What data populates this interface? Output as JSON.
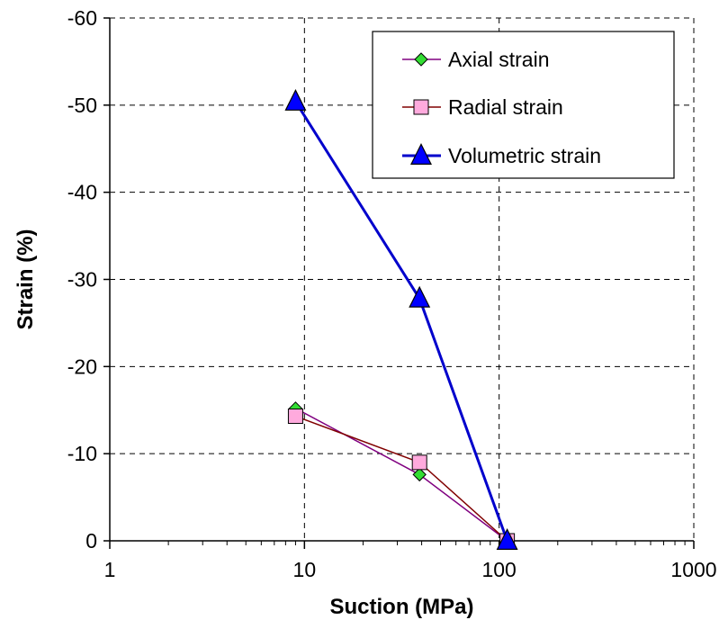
{
  "chart_data": {
    "type": "line",
    "xlabel": "Suction (MPa)",
    "ylabel": "Strain (%)",
    "x_scale": "log",
    "xlim": [
      1,
      1000
    ],
    "ylim": [
      0,
      -60
    ],
    "y_axis_inverted": true,
    "x_ticks": [
      1,
      10,
      100,
      1000
    ],
    "x_tick_labels": [
      "1",
      "10",
      "100",
      "1000"
    ],
    "y_ticks": [
      -60,
      -50,
      -40,
      -30,
      -20,
      -10,
      0
    ],
    "y_tick_labels": [
      "-60",
      "-50",
      "-40",
      "-30",
      "-20",
      "-10",
      "0"
    ],
    "grid": "dashed",
    "legend_position": "top-right",
    "series": [
      {
        "name": "Axial strain",
        "marker": "diamond",
        "marker_color": "#33dd33",
        "line_color": "#800080",
        "x": [
          9,
          39,
          110
        ],
        "y": [
          -15.2,
          -7.6,
          0
        ]
      },
      {
        "name": "Radial strain",
        "marker": "square",
        "marker_color": "#ffaadd",
        "line_color": "#800000",
        "x": [
          9,
          39,
          110
        ],
        "y": [
          -14.3,
          -9.0,
          0
        ]
      },
      {
        "name": "Volumetric strain",
        "marker": "triangle",
        "marker_color": "#0000ff",
        "line_color": "#0000cc",
        "x": [
          9,
          39,
          110
        ],
        "y": [
          -50.4,
          -27.8,
          0
        ]
      }
    ]
  }
}
